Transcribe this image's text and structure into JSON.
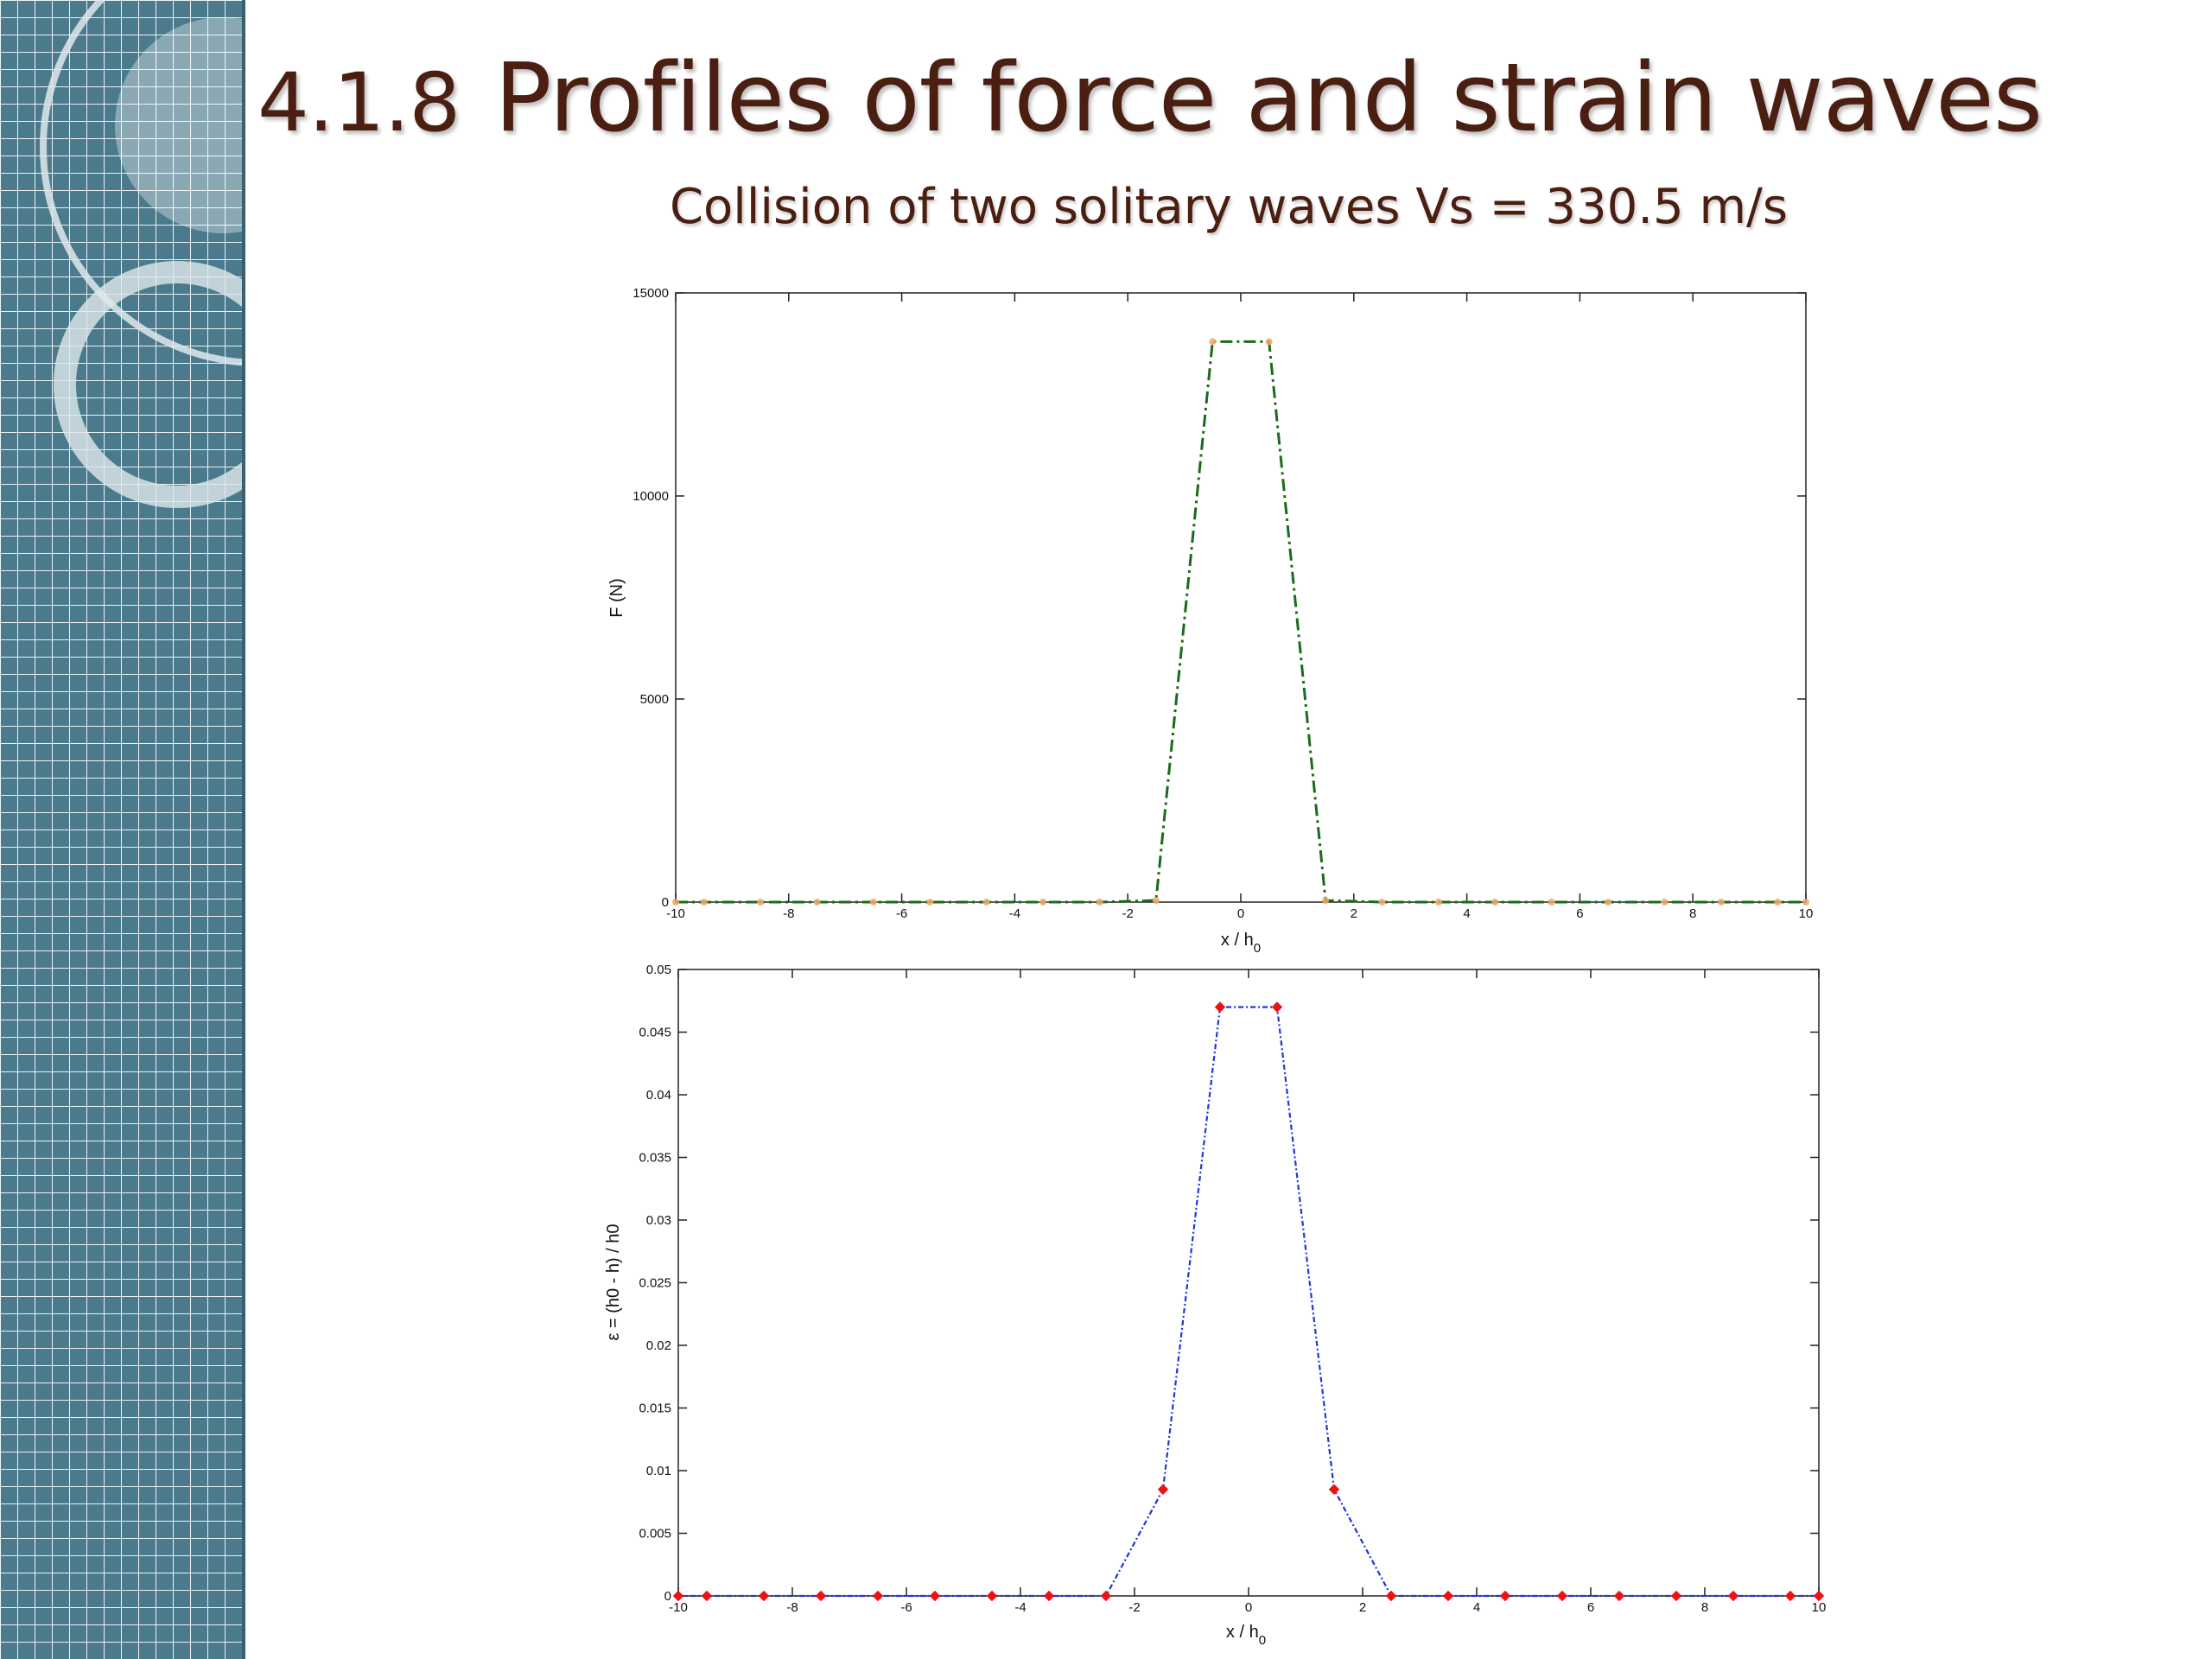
{
  "slide": {
    "title_number": "4.1.8",
    "title_text": "Profiles of force and strain waves",
    "subtitle": "Collision of two solitary waves Vs = 330.5 m/s"
  },
  "colors": {
    "title": "#4a1f12",
    "sidebar_bg": "#4a7a8c",
    "sidebar_grid": "#ffffff",
    "force_line": "#1a6b1a",
    "force_marker": "#f0a868",
    "strain_line": "#2233dd",
    "strain_marker": "#ee1111"
  },
  "chart_data": [
    {
      "type": "line",
      "xlabel": "x / h",
      "xlabel_sub": "0",
      "ylabel": "F (N)",
      "xlim": [
        -10,
        10
      ],
      "ylim": [
        0,
        15000
      ],
      "xticks": [
        -10,
        -8,
        -6,
        -4,
        -2,
        0,
        2,
        4,
        6,
        8,
        10
      ],
      "yticks": [
        0,
        5000,
        10000,
        15000
      ],
      "grid": false,
      "series": [
        {
          "x": [
            -10,
            -9.5,
            -8.5,
            -7.5,
            -6.5,
            -5.5,
            -4.5,
            -3.5,
            -2.5,
            -1.5,
            -0.5,
            0.5,
            1.5,
            2.5,
            3.5,
            4.5,
            5.5,
            6.5,
            7.5,
            8.5,
            9.5,
            10
          ],
          "y": [
            0,
            0,
            0,
            0,
            0,
            0,
            0,
            0,
            0,
            40,
            13800,
            13800,
            40,
            0,
            0,
            0,
            0,
            0,
            0,
            0,
            0,
            0
          ],
          "line_style": "dash-dot",
          "marker": "dot"
        }
      ]
    },
    {
      "type": "line",
      "xlabel": "x / h",
      "xlabel_sub": "0",
      "ylabel": "ε = (h0 - h) / h0",
      "xlim": [
        -10,
        10
      ],
      "ylim": [
        0,
        0.05
      ],
      "xticks": [
        -10,
        -8,
        -6,
        -4,
        -2,
        0,
        2,
        4,
        6,
        8,
        10
      ],
      "yticks": [
        0,
        0.005,
        0.01,
        0.015,
        0.02,
        0.025,
        0.03,
        0.035,
        0.04,
        0.045,
        0.05
      ],
      "grid": false,
      "series": [
        {
          "x": [
            -10,
            -9.5,
            -8.5,
            -7.5,
            -6.5,
            -5.5,
            -4.5,
            -3.5,
            -2.5,
            -1.5,
            -0.5,
            0.5,
            1.5,
            2.5,
            3.5,
            4.5,
            5.5,
            6.5,
            7.5,
            8.5,
            9.5,
            10
          ],
          "y": [
            0,
            0,
            0,
            0,
            0,
            0,
            0,
            0,
            0,
            0.0085,
            0.047,
            0.047,
            0.0085,
            0,
            0,
            0,
            0,
            0,
            0,
            0,
            0,
            0
          ],
          "line_style": "dash-dot",
          "marker": "diamond"
        }
      ]
    }
  ]
}
